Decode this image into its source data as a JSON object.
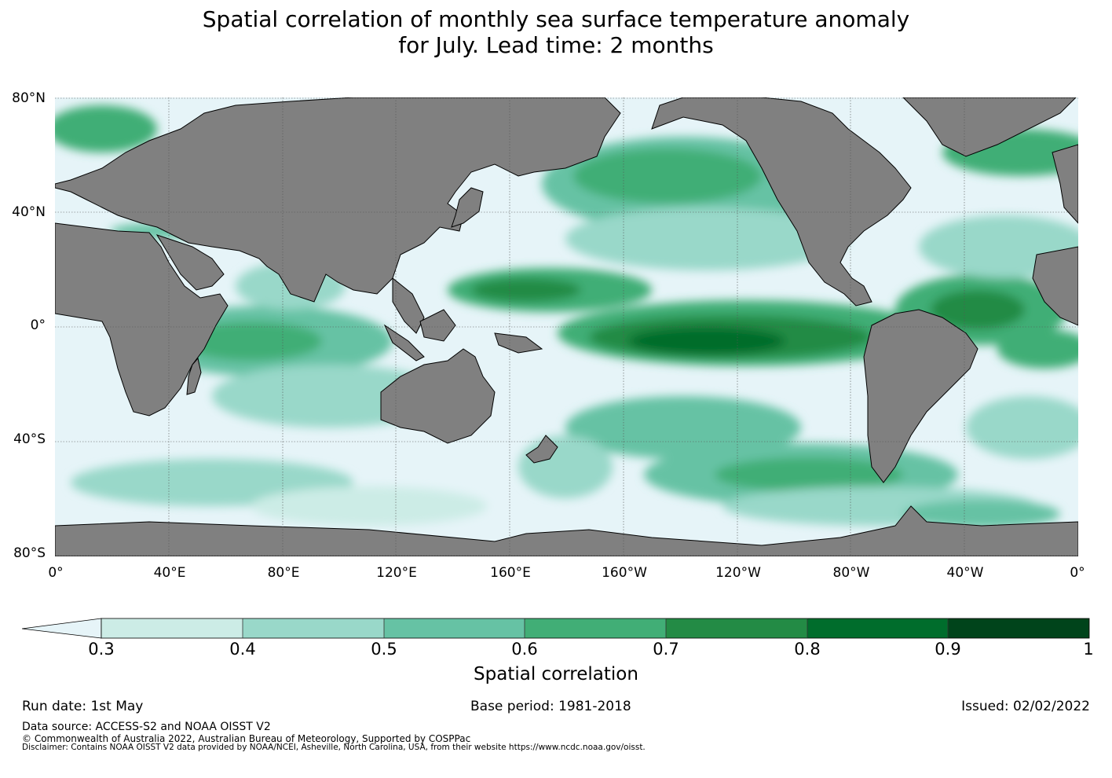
{
  "title_line1": "Spatial correlation of monthly sea surface temperature anomaly",
  "title_line2": "for July. Lead time: 2 months",
  "map": {
    "ocean_color": "#e6f4f8",
    "land_color": "#808080",
    "lat_labels": [
      "80°N",
      "40°N",
      "0°",
      "40°S",
      "80°S"
    ],
    "lon_labels": [
      "0°",
      "40°E",
      "80°E",
      "120°E",
      "160°E",
      "160°W",
      "120°W",
      "80°W",
      "40°W",
      "0°"
    ]
  },
  "colorbar": {
    "label": "Spatial correlation",
    "ticks": [
      "0.3",
      "0.4",
      "0.5",
      "0.6",
      "0.7",
      "0.8",
      "0.9",
      "1"
    ],
    "colors": [
      "#ccece6",
      "#99d8c9",
      "#66c2a4",
      "#41ae76",
      "#238b45",
      "#006d2c",
      "#00441b"
    ],
    "extend_color": "#e6f4f8"
  },
  "info": {
    "run_date": "Run date: 1st May",
    "base_period": "Base period: 1981-2018",
    "issued": "Issued: 02/02/2022"
  },
  "footer": {
    "data_source": "Data source: ACCESS-S2 and NOAA OISST V2",
    "copyright": "© Commonwealth of Australia 2022, Australian Bureau of Meteorology, Supported by COSPPac",
    "disclaimer": "Disclaimer: Contains NOAA OISST V2 data provided by NOAA/NCEI, Asheville, North Carolina, USA, from their website https://www.ncdc.noaa.gov/oisst."
  }
}
